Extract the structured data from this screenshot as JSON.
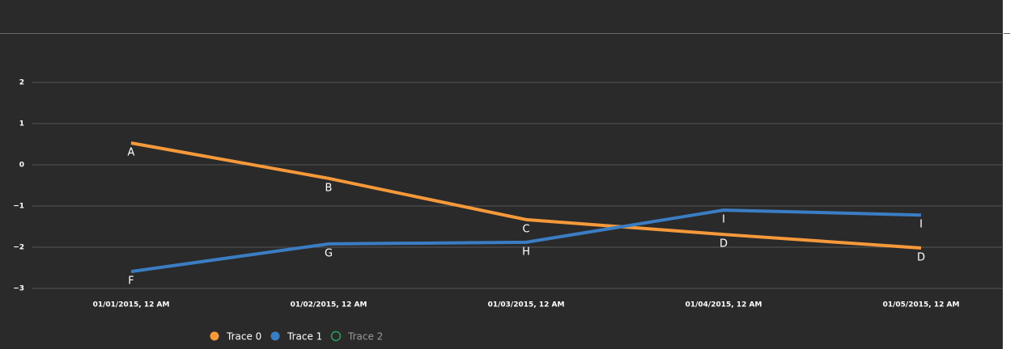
{
  "chart_data": {
    "type": "line",
    "categories": [
      "01/01/2015, 12 AM",
      "01/02/2015, 12 AM",
      "01/03/2015, 12 AM",
      "01/04/2015, 12 AM",
      "01/05/2015, 12 AM"
    ],
    "series": [
      {
        "name": "Trace 0",
        "color": "#f7993a",
        "values": [
          0.53,
          -0.33,
          -1.33,
          -1.69,
          -2.02
        ],
        "labels": [
          "A",
          "B",
          "C",
          "D",
          "D"
        ]
      },
      {
        "name": "Trace 1",
        "color": "#3a7dc3",
        "values": [
          -2.59,
          -1.92,
          -1.88,
          -1.1,
          -1.22
        ],
        "labels": [
          "F",
          "G",
          "H",
          "I",
          "I"
        ]
      },
      {
        "name": "Trace 2",
        "color": "#2ca05a",
        "values": [
          null,
          null,
          null,
          null,
          null
        ],
        "hidden": true
      }
    ],
    "ylim": [
      -3,
      2
    ],
    "yticks": [
      2,
      1,
      0,
      {
        "value": -1,
        "label": "−1"
      },
      {
        "value": -2,
        "label": "−2"
      },
      {
        "value": -3,
        "label": "−3"
      }
    ],
    "grid": true
  }
}
